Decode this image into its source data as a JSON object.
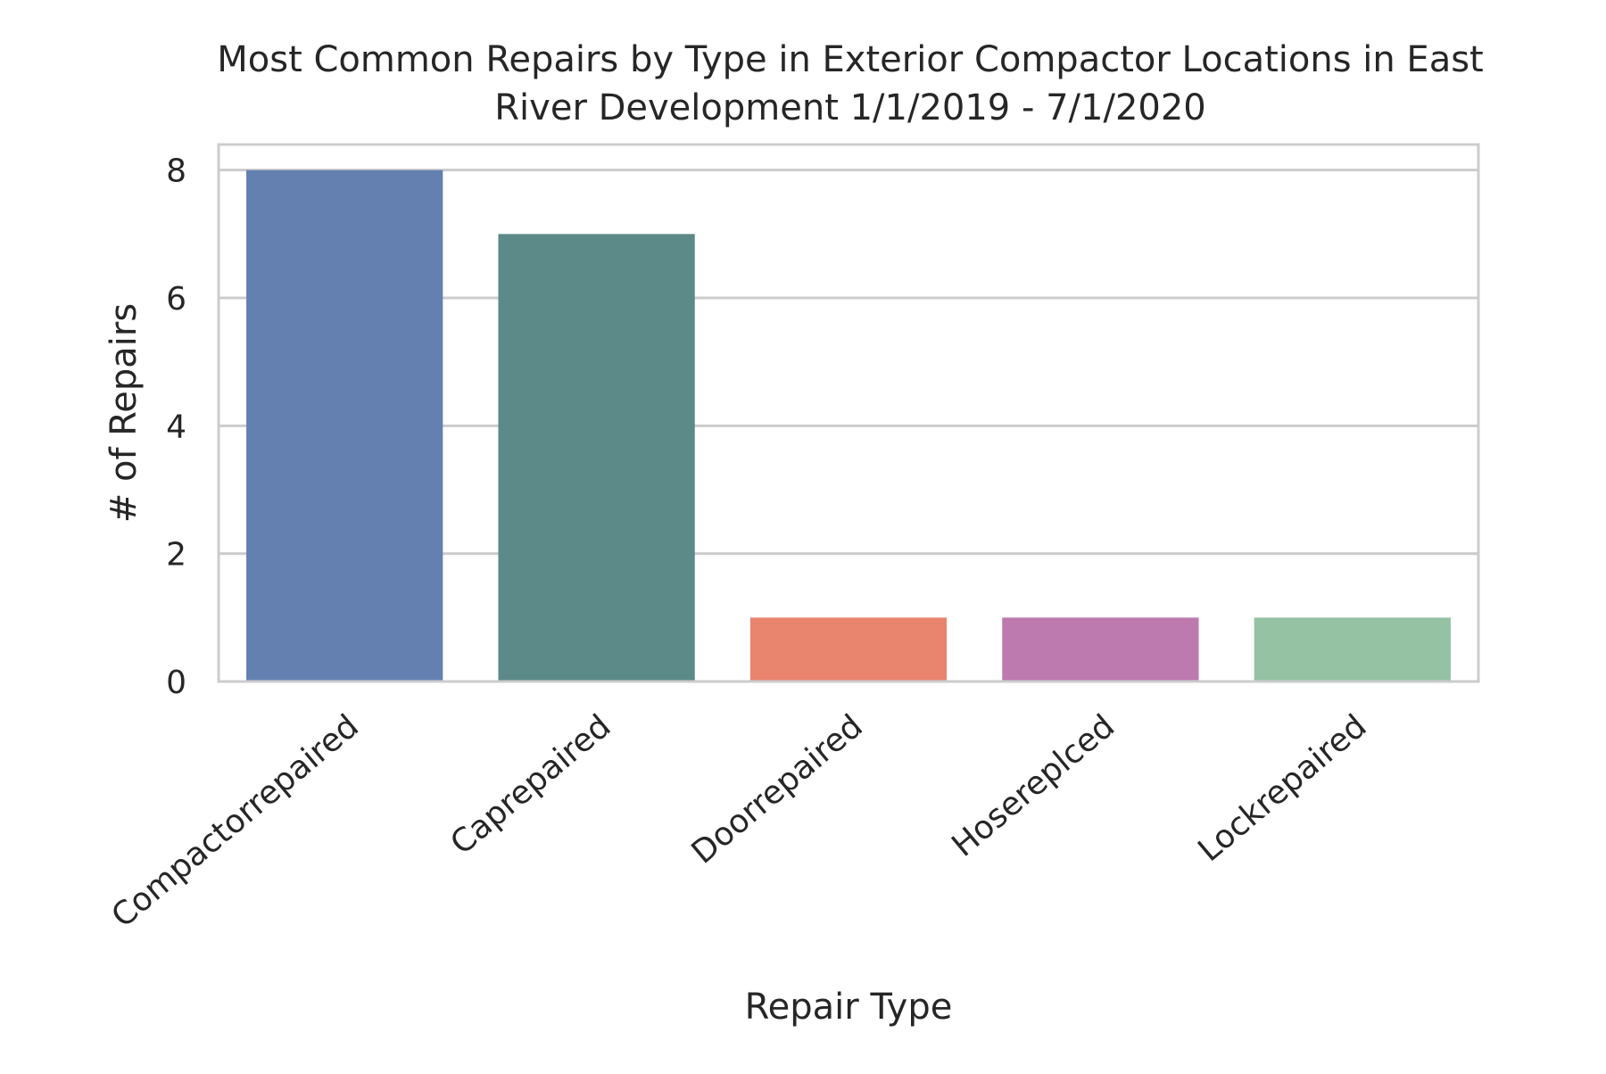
{
  "chart_data": {
    "type": "bar",
    "title_lines": [
      "Most Common Repairs by Type in Exterior Compactor Locations in East",
      "River Development 1/1/2019 - 7/1/2020"
    ],
    "xlabel": "Repair Type",
    "ylabel": "# of Repairs",
    "categories": [
      "Compactorrepaired",
      "Caprepaired",
      "Doorrepaired",
      "Hosereplced",
      "Lockrepaired"
    ],
    "values": [
      8,
      7,
      1,
      1,
      1
    ],
    "colors": [
      "#6480b0",
      "#5c8a88",
      "#e9846f",
      "#bd7aaf",
      "#94c2a3"
    ],
    "ylim": [
      0,
      8.4
    ],
    "yticks": [
      0,
      2,
      4,
      6,
      8
    ],
    "grid": true,
    "style": {
      "grid_color": "#cccccc",
      "frame_color": "#cccccc",
      "background": "#ffffff"
    }
  }
}
